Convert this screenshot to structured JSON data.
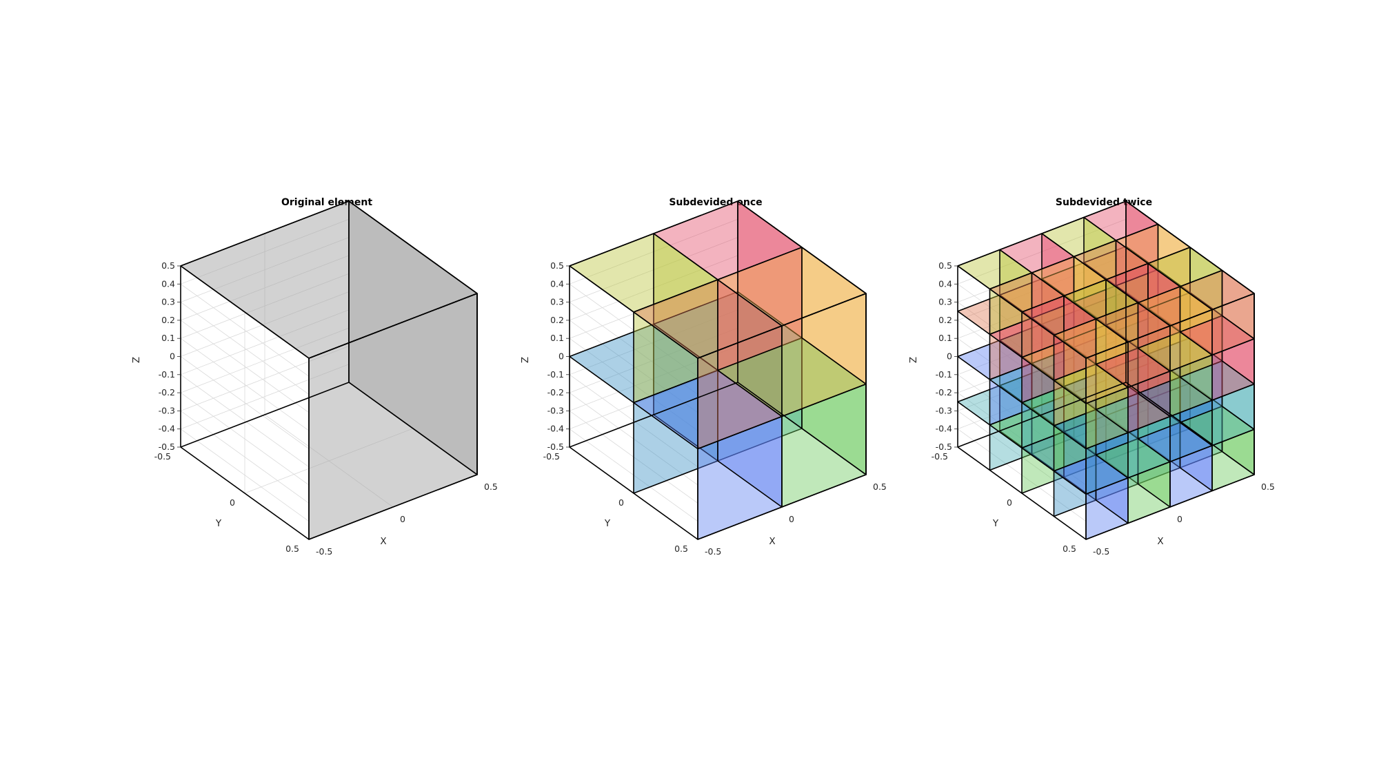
{
  "panels": [
    {
      "id": "original",
      "title": "Original element",
      "subdivisions": 1,
      "x_label": "X",
      "y_label": "Y",
      "z_label": "Z",
      "x_ticks": [
        "-0.5",
        "0",
        "0.5"
      ],
      "y_ticks": [
        "-0.5",
        "0",
        "0.5"
      ],
      "z_ticks": [
        "-0.5",
        "-0.4",
        "-0.3",
        "-0.2",
        "-0.1",
        "0",
        "0.1",
        "0.2",
        "0.3",
        "0.4",
        "0.5"
      ],
      "colors": [
        "#a6a6a6"
      ]
    },
    {
      "id": "once",
      "title": "Subdevided once",
      "subdivisions": 2,
      "x_label": "X",
      "y_label": "Y",
      "z_label": "Z",
      "x_ticks": [
        "-0.5",
        "0",
        "0.5"
      ],
      "y_ticks": [
        "-0.5",
        "0",
        "0.5"
      ],
      "z_ticks": [
        "-0.5",
        "-0.4",
        "-0.3",
        "-0.2",
        "-0.1",
        "0",
        "0.1",
        "0.2",
        "0.3",
        "0.4",
        "0.5"
      ],
      "colors": [
        "#5b7ff0",
        "#3a8fc4",
        "#6ac75a",
        "#4fb0b8",
        "#e34a66",
        "#e07a55",
        "#b9c43a",
        "#f0b24a"
      ]
    },
    {
      "id": "twice",
      "title": "Subdevided twice",
      "subdivisions": 4,
      "x_label": "X",
      "y_label": "Y",
      "z_label": "Z",
      "x_ticks": [
        "-0.5",
        "0",
        "0.5"
      ],
      "y_ticks": [
        "-0.5",
        "0",
        "0.5"
      ],
      "z_ticks": [
        "-0.5",
        "-0.4",
        "-0.3",
        "-0.2",
        "-0.1",
        "0",
        "0.1",
        "0.2",
        "0.3",
        "0.4",
        "0.5"
      ],
      "colors": [
        "#5b7ff0",
        "#3a8fc4",
        "#6ac75a",
        "#4fb0b8",
        "#e34a66",
        "#e07a55",
        "#b9c43a",
        "#f0b24a",
        "#9ccf5a",
        "#2fa3a8",
        "#d6b13a",
        "#e8604a"
      ]
    }
  ]
}
